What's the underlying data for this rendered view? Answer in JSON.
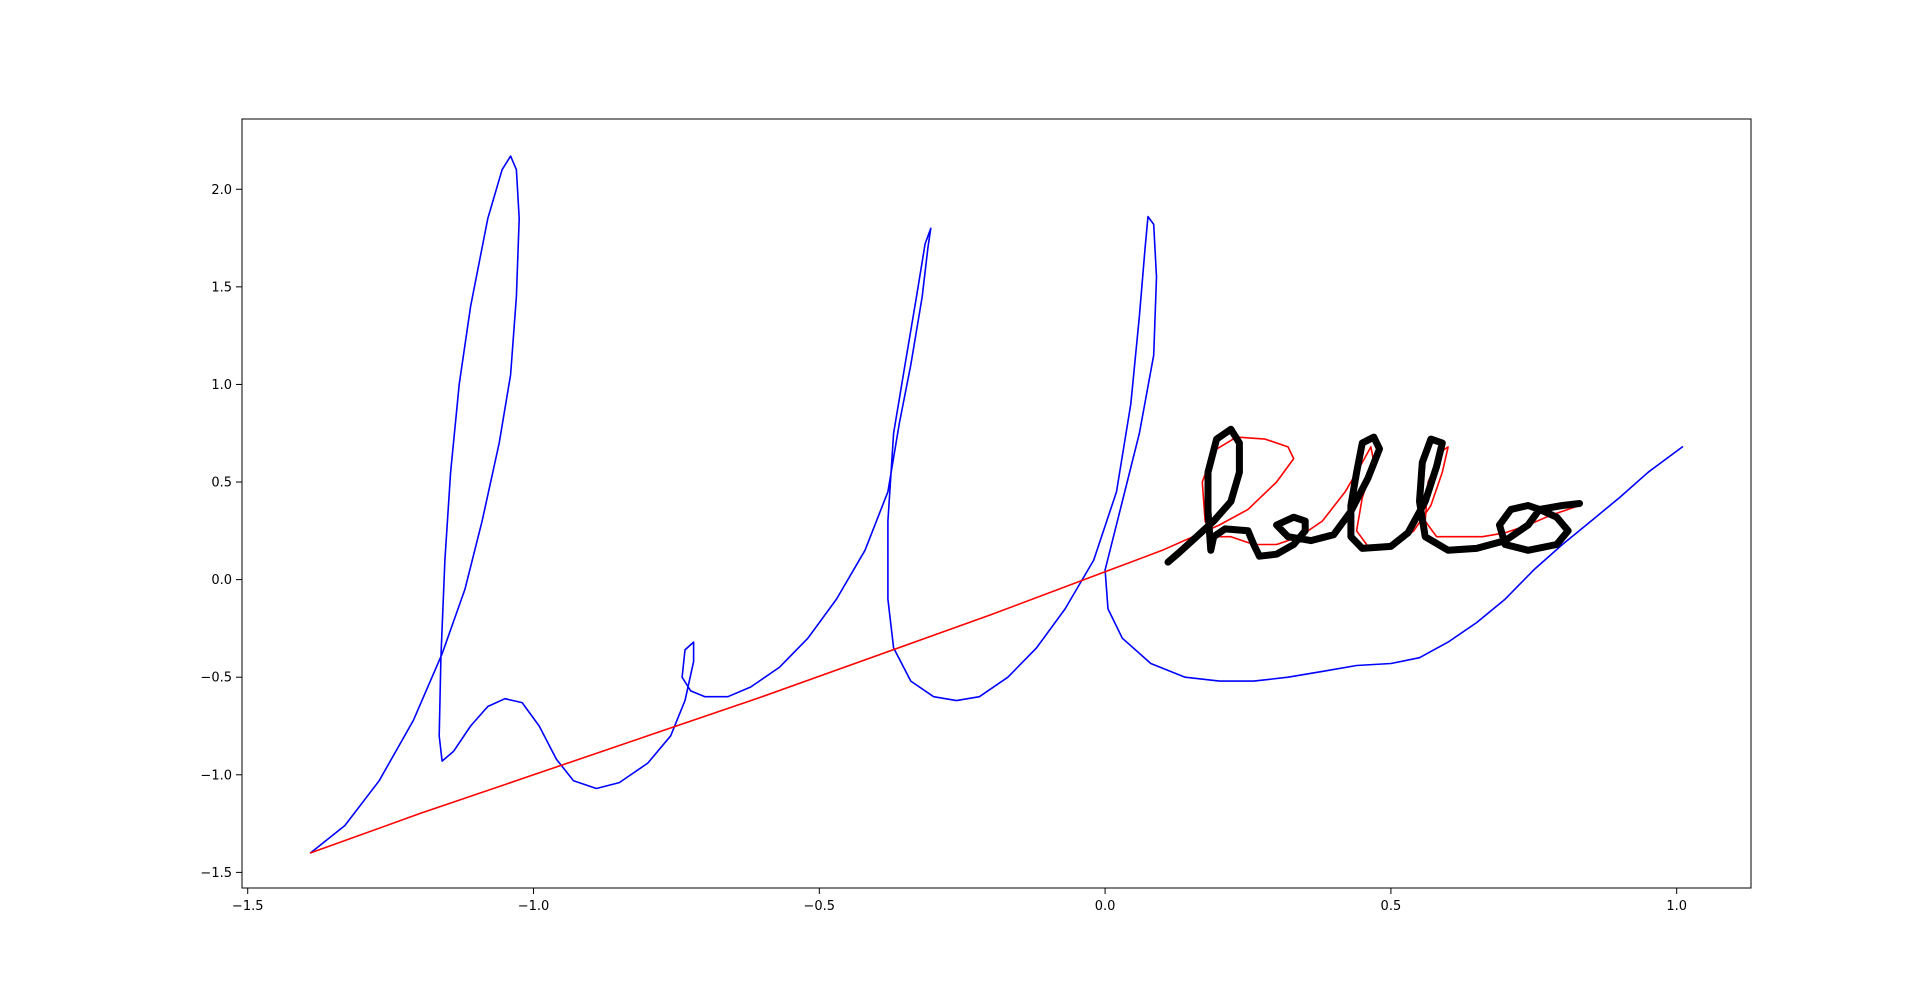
{
  "chart_data": {
    "type": "line",
    "title": "",
    "xlabel": "",
    "ylabel": "",
    "xlim": [
      -1.51,
      1.13
    ],
    "ylim": [
      -1.58,
      2.36
    ],
    "grid": false,
    "legend": "none",
    "x_ticks": [
      {
        "value": -1.5,
        "label": "−1.5"
      },
      {
        "value": -1.0,
        "label": "−1.0"
      },
      {
        "value": -0.5,
        "label": "−0.5"
      },
      {
        "value": 0.0,
        "label": "0.0"
      },
      {
        "value": 0.5,
        "label": "0.5"
      },
      {
        "value": 1.0,
        "label": "1.0"
      }
    ],
    "y_ticks": [
      {
        "value": -1.5,
        "label": "−1.5"
      },
      {
        "value": -1.0,
        "label": "−1.0"
      },
      {
        "value": -0.5,
        "label": "−0.5"
      },
      {
        "value": 0.0,
        "label": "0.0"
      },
      {
        "value": 0.5,
        "label": "0.5"
      },
      {
        "value": 1.0,
        "label": "1.0"
      },
      {
        "value": 1.5,
        "label": "1.5"
      },
      {
        "value": 2.0,
        "label": "2.0"
      }
    ],
    "series": [
      {
        "color": "#0000ff",
        "stroke": "thin",
        "points": [
          [
            -1.39,
            -1.4
          ],
          [
            -1.33,
            -1.26
          ],
          [
            -1.27,
            -1.03
          ],
          [
            -1.21,
            -0.72
          ],
          [
            -1.16,
            -0.38
          ],
          [
            -1.12,
            -0.05
          ],
          [
            -1.09,
            0.3
          ],
          [
            -1.06,
            0.7
          ],
          [
            -1.04,
            1.05
          ],
          [
            -1.03,
            1.45
          ],
          [
            -1.025,
            1.85
          ],
          [
            -1.03,
            2.1
          ],
          [
            -1.04,
            2.17
          ],
          [
            -1.055,
            2.1
          ],
          [
            -1.08,
            1.85
          ],
          [
            -1.11,
            1.4
          ],
          [
            -1.13,
            1.0
          ],
          [
            -1.145,
            0.55
          ],
          [
            -1.155,
            0.1
          ],
          [
            -1.162,
            -0.4
          ],
          [
            -1.165,
            -0.8
          ],
          [
            -1.16,
            -0.93
          ],
          [
            -1.14,
            -0.88
          ],
          [
            -1.11,
            -0.75
          ],
          [
            -1.08,
            -0.65
          ],
          [
            -1.05,
            -0.61
          ],
          [
            -1.02,
            -0.63
          ],
          [
            -0.99,
            -0.75
          ],
          [
            -0.96,
            -0.92
          ],
          [
            -0.93,
            -1.03
          ],
          [
            -0.89,
            -1.07
          ],
          [
            -0.85,
            -1.04
          ],
          [
            -0.8,
            -0.94
          ],
          [
            -0.76,
            -0.8
          ],
          [
            -0.735,
            -0.62
          ],
          [
            -0.72,
            -0.42
          ],
          [
            -0.72,
            -0.32
          ],
          [
            -0.735,
            -0.36
          ],
          [
            -0.74,
            -0.5
          ],
          [
            -0.725,
            -0.57
          ],
          [
            -0.7,
            -0.6
          ],
          [
            -0.66,
            -0.6
          ],
          [
            -0.62,
            -0.55
          ],
          [
            -0.57,
            -0.45
          ],
          [
            -0.52,
            -0.3
          ],
          [
            -0.47,
            -0.1
          ],
          [
            -0.42,
            0.15
          ],
          [
            -0.38,
            0.45
          ],
          [
            -0.36,
            0.8
          ],
          [
            -0.34,
            1.1
          ],
          [
            -0.32,
            1.45
          ],
          [
            -0.31,
            1.7
          ],
          [
            -0.305,
            1.8
          ],
          [
            -0.315,
            1.72
          ],
          [
            -0.33,
            1.45
          ],
          [
            -0.35,
            1.1
          ],
          [
            -0.37,
            0.75
          ],
          [
            -0.38,
            0.3
          ],
          [
            -0.38,
            -0.1
          ],
          [
            -0.37,
            -0.35
          ],
          [
            -0.34,
            -0.52
          ],
          [
            -0.3,
            -0.6
          ],
          [
            -0.26,
            -0.62
          ],
          [
            -0.22,
            -0.6
          ],
          [
            -0.17,
            -0.5
          ],
          [
            -0.12,
            -0.35
          ],
          [
            -0.07,
            -0.15
          ],
          [
            -0.02,
            0.1
          ],
          [
            0.02,
            0.45
          ],
          [
            0.045,
            0.9
          ],
          [
            0.06,
            1.35
          ],
          [
            0.07,
            1.7
          ],
          [
            0.075,
            1.86
          ],
          [
            0.085,
            1.82
          ],
          [
            0.09,
            1.55
          ],
          [
            0.085,
            1.15
          ],
          [
            0.06,
            0.75
          ],
          [
            0.03,
            0.4
          ],
          [
            0.0,
            0.05
          ],
          [
            0.005,
            -0.15
          ],
          [
            0.03,
            -0.3
          ],
          [
            0.08,
            -0.43
          ],
          [
            0.14,
            -0.5
          ],
          [
            0.2,
            -0.52
          ],
          [
            0.26,
            -0.52
          ],
          [
            0.32,
            -0.5
          ],
          [
            0.38,
            -0.47
          ],
          [
            0.44,
            -0.44
          ],
          [
            0.5,
            -0.43
          ],
          [
            0.55,
            -0.4
          ],
          [
            0.6,
            -0.32
          ],
          [
            0.65,
            -0.22
          ],
          [
            0.7,
            -0.1
          ],
          [
            0.75,
            0.05
          ],
          [
            0.8,
            0.18
          ],
          [
            0.85,
            0.3
          ],
          [
            0.9,
            0.42
          ],
          [
            0.95,
            0.55
          ],
          [
            1.01,
            0.68
          ]
        ]
      },
      {
        "color": "#ff0000",
        "stroke": "thin",
        "points": [
          [
            -1.39,
            -1.4
          ],
          [
            -1.2,
            -1.2
          ],
          [
            -1.0,
            -1.0
          ],
          [
            -0.8,
            -0.8
          ],
          [
            -0.6,
            -0.6
          ],
          [
            -0.4,
            -0.39
          ],
          [
            -0.2,
            -0.18
          ],
          [
            0.0,
            0.04
          ],
          [
            0.1,
            0.15
          ],
          [
            0.2,
            0.28
          ],
          [
            0.25,
            0.36
          ],
          [
            0.3,
            0.5
          ],
          [
            0.33,
            0.62
          ],
          [
            0.32,
            0.68
          ],
          [
            0.28,
            0.72
          ],
          [
            0.23,
            0.73
          ],
          [
            0.19,
            0.66
          ],
          [
            0.17,
            0.5
          ],
          [
            0.175,
            0.3
          ],
          [
            0.19,
            0.22
          ],
          [
            0.22,
            0.22
          ],
          [
            0.26,
            0.18
          ],
          [
            0.3,
            0.18
          ],
          [
            0.34,
            0.22
          ],
          [
            0.38,
            0.3
          ],
          [
            0.42,
            0.45
          ],
          [
            0.45,
            0.6
          ],
          [
            0.465,
            0.68
          ],
          [
            0.47,
            0.6
          ],
          [
            0.45,
            0.42
          ],
          [
            0.44,
            0.25
          ],
          [
            0.46,
            0.17
          ],
          [
            0.5,
            0.17
          ],
          [
            0.54,
            0.25
          ],
          [
            0.57,
            0.38
          ],
          [
            0.59,
            0.55
          ],
          [
            0.6,
            0.68
          ],
          [
            0.59,
            0.66
          ],
          [
            0.565,
            0.5
          ],
          [
            0.56,
            0.3
          ],
          [
            0.58,
            0.22
          ],
          [
            0.62,
            0.22
          ],
          [
            0.66,
            0.22
          ],
          [
            0.7,
            0.24
          ],
          [
            0.74,
            0.28
          ],
          [
            0.78,
            0.33
          ],
          [
            0.83,
            0.38
          ]
        ]
      },
      {
        "color": "#000000",
        "stroke": "thick",
        "points": [
          [
            0.11,
            0.09
          ],
          [
            0.13,
            0.14
          ],
          [
            0.16,
            0.22
          ],
          [
            0.19,
            0.3
          ],
          [
            0.22,
            0.4
          ],
          [
            0.235,
            0.55
          ],
          [
            0.235,
            0.7
          ],
          [
            0.22,
            0.77
          ],
          [
            0.195,
            0.72
          ],
          [
            0.18,
            0.55
          ],
          [
            0.18,
            0.35
          ],
          [
            0.185,
            0.15
          ],
          [
            0.19,
            0.22
          ],
          [
            0.21,
            0.26
          ],
          [
            0.25,
            0.25
          ],
          [
            0.26,
            0.18
          ],
          [
            0.27,
            0.12
          ],
          [
            0.3,
            0.13
          ],
          [
            0.33,
            0.18
          ],
          [
            0.35,
            0.25
          ],
          [
            0.35,
            0.3
          ],
          [
            0.33,
            0.32
          ],
          [
            0.3,
            0.28
          ],
          [
            0.32,
            0.22
          ],
          [
            0.36,
            0.2
          ],
          [
            0.4,
            0.23
          ],
          [
            0.43,
            0.35
          ],
          [
            0.46,
            0.52
          ],
          [
            0.48,
            0.67
          ],
          [
            0.47,
            0.73
          ],
          [
            0.45,
            0.7
          ],
          [
            0.44,
            0.55
          ],
          [
            0.43,
            0.38
          ],
          [
            0.43,
            0.22
          ],
          [
            0.45,
            0.16
          ],
          [
            0.5,
            0.17
          ],
          [
            0.53,
            0.24
          ],
          [
            0.56,
            0.4
          ],
          [
            0.58,
            0.58
          ],
          [
            0.59,
            0.7
          ],
          [
            0.57,
            0.72
          ],
          [
            0.555,
            0.6
          ],
          [
            0.55,
            0.4
          ],
          [
            0.56,
            0.22
          ],
          [
            0.6,
            0.15
          ],
          [
            0.65,
            0.16
          ],
          [
            0.7,
            0.2
          ],
          [
            0.74,
            0.28
          ],
          [
            0.76,
            0.36
          ],
          [
            0.74,
            0.38
          ],
          [
            0.71,
            0.36
          ],
          [
            0.69,
            0.28
          ],
          [
            0.7,
            0.18
          ],
          [
            0.74,
            0.15
          ],
          [
            0.79,
            0.18
          ],
          [
            0.81,
            0.25
          ],
          [
            0.79,
            0.32
          ],
          [
            0.76,
            0.36
          ],
          [
            0.8,
            0.38
          ],
          [
            0.83,
            0.39
          ]
        ]
      }
    ]
  }
}
